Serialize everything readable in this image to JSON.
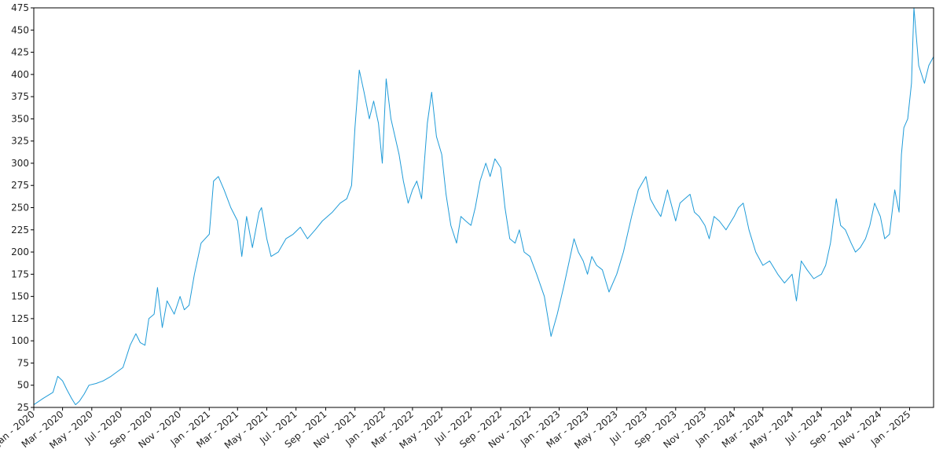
{
  "chart_data": {
    "type": "line",
    "title": "",
    "xlabel": "",
    "ylabel": "",
    "line_color": "#1f9bd8",
    "grid": false,
    "ylim": [
      25,
      475
    ],
    "xlim": [
      "2020-01-01",
      "2025-02-20"
    ],
    "yticks": [
      25,
      50,
      75,
      100,
      125,
      150,
      175,
      200,
      225,
      250,
      275,
      300,
      325,
      350,
      375,
      400,
      425,
      450,
      475
    ],
    "xticks": [
      {
        "date": "2020-01-01",
        "label": "Jan - 2020"
      },
      {
        "date": "2020-03-01",
        "label": "Mar - 2020"
      },
      {
        "date": "2020-05-01",
        "label": "May - 2020"
      },
      {
        "date": "2020-07-01",
        "label": "Jul - 2020"
      },
      {
        "date": "2020-09-01",
        "label": "Sep - 2020"
      },
      {
        "date": "2020-11-01",
        "label": "Nov - 2020"
      },
      {
        "date": "2021-01-01",
        "label": "Jan - 2021"
      },
      {
        "date": "2021-03-01",
        "label": "Mar - 2021"
      },
      {
        "date": "2021-05-01",
        "label": "May - 2021"
      },
      {
        "date": "2021-07-01",
        "label": "Jul - 2021"
      },
      {
        "date": "2021-09-01",
        "label": "Sep - 2021"
      },
      {
        "date": "2021-11-01",
        "label": "Nov - 2021"
      },
      {
        "date": "2022-01-01",
        "label": "Jan - 2022"
      },
      {
        "date": "2022-03-01",
        "label": "Mar - 2022"
      },
      {
        "date": "2022-05-01",
        "label": "May - 2022"
      },
      {
        "date": "2022-07-01",
        "label": "Jul - 2022"
      },
      {
        "date": "2022-09-01",
        "label": "Sep - 2022"
      },
      {
        "date": "2022-11-01",
        "label": "Nov - 2022"
      },
      {
        "date": "2023-01-01",
        "label": "Jan - 2023"
      },
      {
        "date": "2023-03-01",
        "label": "Mar - 2023"
      },
      {
        "date": "2023-05-01",
        "label": "May - 2023"
      },
      {
        "date": "2023-07-01",
        "label": "Jul - 2023"
      },
      {
        "date": "2023-09-01",
        "label": "Sep - 2023"
      },
      {
        "date": "2023-11-01",
        "label": "Nov - 2023"
      },
      {
        "date": "2024-01-01",
        "label": "Jan - 2024"
      },
      {
        "date": "2024-03-01",
        "label": "Mar - 2024"
      },
      {
        "date": "2024-05-01",
        "label": "May - 2024"
      },
      {
        "date": "2024-07-01",
        "label": "Jul - 2024"
      },
      {
        "date": "2024-09-01",
        "label": "Sep - 2024"
      },
      {
        "date": "2024-11-01",
        "label": "Nov - 2024"
      },
      {
        "date": "2025-01-01",
        "label": "Jan - 2025"
      }
    ],
    "series": [
      {
        "x": [
          "2020-01-01",
          "2020-01-20",
          "2020-02-10",
          "2020-02-20",
          "2020-03-01",
          "2020-03-10",
          "2020-03-20",
          "2020-03-28",
          "2020-04-05",
          "2020-04-15",
          "2020-04-25",
          "2020-05-10",
          "2020-05-25",
          "2020-06-10",
          "2020-06-25",
          "2020-07-05",
          "2020-07-20",
          "2020-08-01",
          "2020-08-10",
          "2020-08-20",
          "2020-08-28",
          "2020-09-08",
          "2020-09-15",
          "2020-09-25",
          "2020-10-05",
          "2020-10-20",
          "2020-11-01",
          "2020-11-10",
          "2020-11-20",
          "2020-12-01",
          "2020-12-15",
          "2021-01-01",
          "2021-01-10",
          "2021-01-20",
          "2021-02-01",
          "2021-02-15",
          "2021-03-01",
          "2021-03-10",
          "2021-03-20",
          "2021-04-01",
          "2021-04-15",
          "2021-04-20",
          "2021-05-01",
          "2021-05-10",
          "2021-05-25",
          "2021-06-10",
          "2021-06-25",
          "2021-07-10",
          "2021-07-25",
          "2021-08-10",
          "2021-08-25",
          "2021-09-15",
          "2021-10-01",
          "2021-10-15",
          "2021-10-25",
          "2021-11-01",
          "2021-11-10",
          "2021-11-20",
          "2021-12-01",
          "2021-12-10",
          "2021-12-20",
          "2021-12-28",
          "2022-01-05",
          "2022-01-15",
          "2022-02-01",
          "2022-02-10",
          "2022-02-20",
          "2022-03-01",
          "2022-03-10",
          "2022-03-20",
          "2022-04-01",
          "2022-04-10",
          "2022-04-20",
          "2022-05-01",
          "2022-05-10",
          "2022-05-20",
          "2022-06-01",
          "2022-06-10",
          "2022-06-20",
          "2022-07-01",
          "2022-07-10",
          "2022-07-20",
          "2022-08-01",
          "2022-08-10",
          "2022-08-20",
          "2022-09-01",
          "2022-09-10",
          "2022-09-20",
          "2022-10-01",
          "2022-10-10",
          "2022-10-20",
          "2022-11-01",
          "2022-11-15",
          "2022-12-01",
          "2022-12-15",
          "2022-12-28",
          "2023-01-10",
          "2023-01-20",
          "2023-02-01",
          "2023-02-10",
          "2023-02-20",
          "2023-03-01",
          "2023-03-10",
          "2023-03-20",
          "2023-04-01",
          "2023-04-15",
          "2023-05-01",
          "2023-05-15",
          "2023-06-01",
          "2023-06-15",
          "2023-07-01",
          "2023-07-10",
          "2023-07-20",
          "2023-08-01",
          "2023-08-15",
          "2023-09-01",
          "2023-09-10",
          "2023-09-20",
          "2023-10-01",
          "2023-10-10",
          "2023-10-20",
          "2023-11-01",
          "2023-11-10",
          "2023-11-20",
          "2023-12-01",
          "2023-12-15",
          "2024-01-01",
          "2024-01-10",
          "2024-01-20",
          "2024-02-01",
          "2024-02-15",
          "2024-03-01",
          "2024-03-15",
          "2024-04-01",
          "2024-04-15",
          "2024-05-01",
          "2024-05-10",
          "2024-05-20",
          "2024-06-01",
          "2024-06-15",
          "2024-07-01",
          "2024-07-10",
          "2024-07-20",
          "2024-08-01",
          "2024-08-10",
          "2024-08-20",
          "2024-09-01",
          "2024-09-10",
          "2024-09-20",
          "2024-10-01",
          "2024-10-10",
          "2024-10-20",
          "2024-11-01",
          "2024-11-10",
          "2024-11-20",
          "2024-12-01",
          "2024-12-10",
          "2024-12-15",
          "2024-12-20",
          "2024-12-28",
          "2025-01-05",
          "2025-01-10",
          "2025-01-20",
          "2025-02-01",
          "2025-02-10",
          "2025-02-20"
        ],
        "y": [
          28,
          35,
          42,
          60,
          55,
          45,
          35,
          28,
          32,
          40,
          50,
          52,
          55,
          60,
          66,
          70,
          95,
          108,
          98,
          95,
          125,
          130,
          160,
          115,
          145,
          130,
          150,
          135,
          140,
          175,
          210,
          220,
          280,
          285,
          270,
          250,
          235,
          195,
          240,
          205,
          245,
          250,
          215,
          195,
          200,
          215,
          220,
          228,
          215,
          225,
          235,
          245,
          255,
          260,
          275,
          340,
          405,
          380,
          350,
          370,
          345,
          300,
          395,
          350,
          310,
          280,
          255,
          270,
          280,
          260,
          345,
          380,
          330,
          310,
          265,
          230,
          210,
          240,
          235,
          230,
          250,
          280,
          300,
          285,
          305,
          295,
          250,
          215,
          210,
          225,
          200,
          195,
          175,
          150,
          105,
          130,
          160,
          185,
          215,
          200,
          190,
          175,
          195,
          185,
          180,
          155,
          175,
          200,
          240,
          270,
          285,
          260,
          250,
          240,
          270,
          235,
          255,
          260,
          265,
          245,
          240,
          230,
          215,
          240,
          235,
          225,
          240,
          250,
          255,
          225,
          200,
          185,
          190,
          175,
          165,
          175,
          145,
          190,
          180,
          170,
          175,
          185,
          210,
          260,
          230,
          225,
          210,
          200,
          205,
          215,
          230,
          255,
          240,
          215,
          220,
          270,
          245,
          310,
          340,
          350,
          390,
          475,
          410,
          390,
          410,
          420
        ]
      }
    ]
  }
}
